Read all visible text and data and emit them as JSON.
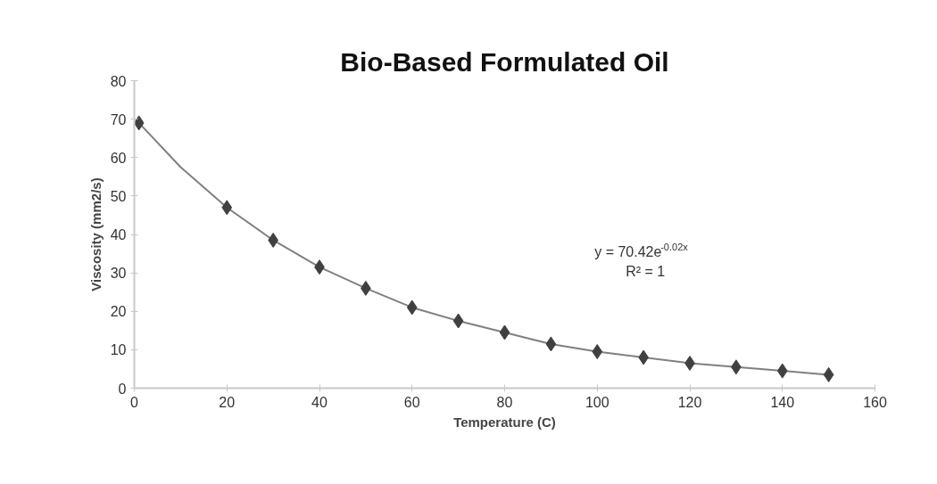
{
  "chart_data": {
    "type": "scatter",
    "title": "Bio-Based Formulated Oil",
    "xlabel": "Temperature (C)",
    "ylabel": "Viscosity (mm2/s)",
    "x": [
      1,
      20,
      30,
      40,
      50,
      60,
      70,
      80,
      90,
      100,
      110,
      120,
      130,
      140,
      150
    ],
    "series": [
      {
        "color": "#404040",
        "marker": "diamond",
        "values": [
          69,
          47,
          38.5,
          31.5,
          26,
          21,
          17.5,
          14.5,
          11.5,
          9.5,
          8,
          6.5,
          5.5,
          4.5,
          3.5
        ]
      },
      {
        "type": "line",
        "color": "#808080",
        "line_style": "solid",
        "x": [
          1,
          10,
          20,
          30,
          40,
          50,
          60,
          70,
          80,
          90,
          100,
          110,
          120,
          130,
          140,
          150
        ],
        "values": [
          69,
          57.5,
          47,
          38.5,
          31.5,
          26,
          21,
          17.5,
          14.5,
          11.5,
          9.5,
          8,
          6.5,
          5.5,
          4.5,
          3.5
        ]
      }
    ],
    "annotations": [
      "y = 70.42e$^{-0.02x}$",
      "R² = 1"
    ],
    "xlim": [
      0,
      160
    ],
    "xticks": [
      0,
      20,
      40,
      60,
      80,
      100,
      120,
      140,
      160
    ],
    "ylim": [
      0,
      80
    ],
    "yticks": [
      0,
      10,
      20,
      30,
      40,
      50,
      60,
      70,
      80
    ],
    "grid": false
  }
}
